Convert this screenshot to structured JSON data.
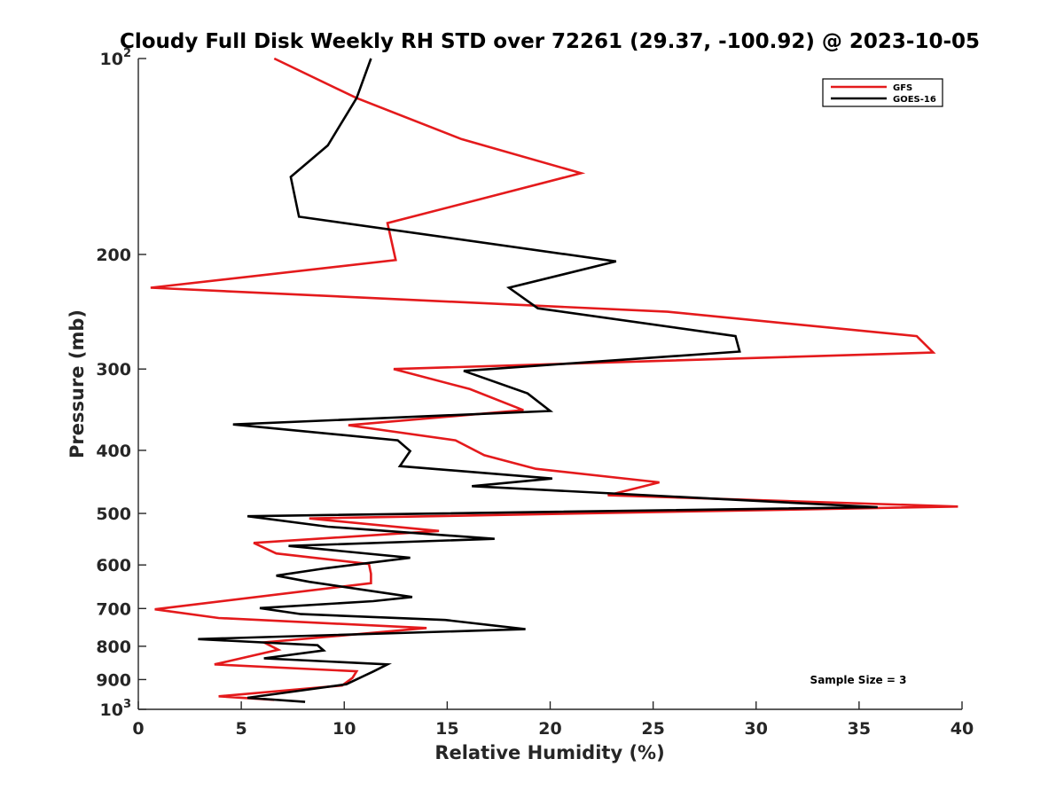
{
  "chart_data": {
    "type": "line",
    "title": "Cloudy Full Disk Weekly RH STD over 72261 (29.37, -100.92) @ 2023-10-05",
    "xlabel": "Relative Humidity (%)",
    "ylabel": "Pressure (mb)",
    "xlim": [
      0,
      40
    ],
    "ylim": [
      100,
      1000
    ],
    "yscale": "log",
    "y_reversed": true,
    "x_ticks": [
      0,
      5,
      10,
      15,
      20,
      25,
      30,
      35,
      40
    ],
    "y_ticks": [
      {
        "value": 100,
        "label": "10",
        "sup": "2"
      },
      {
        "value": 200,
        "label": "200"
      },
      {
        "value": 300,
        "label": "300"
      },
      {
        "value": 400,
        "label": "400"
      },
      {
        "value": 500,
        "label": "500"
      },
      {
        "value": 600,
        "label": "600"
      },
      {
        "value": 700,
        "label": "700"
      },
      {
        "value": 800,
        "label": "800"
      },
      {
        "value": 900,
        "label": "900"
      },
      {
        "value": 1000,
        "label": "10",
        "sup": "3"
      }
    ],
    "grid": false,
    "legend_position": "top-right",
    "series": [
      {
        "name": "GFS",
        "color": "#e41a1c",
        "points": [
          [
            6.6,
            100
          ],
          [
            10.6,
            115
          ],
          [
            15.7,
            133
          ],
          [
            21.5,
            150
          ],
          [
            12.1,
            179
          ],
          [
            12.5,
            204
          ],
          [
            0.6,
            225
          ],
          [
            25.7,
            245
          ],
          [
            37.8,
            267
          ],
          [
            38.6,
            283
          ],
          [
            12.4,
            300
          ],
          [
            16.1,
            322
          ],
          [
            18.7,
            347
          ],
          [
            10.2,
            366
          ],
          [
            15.4,
            386
          ],
          [
            16.8,
            407
          ],
          [
            19.3,
            427
          ],
          [
            25.3,
            448
          ],
          [
            22.8,
            469
          ],
          [
            39.8,
            488
          ],
          [
            8.3,
            509
          ],
          [
            14.6,
            532
          ],
          [
            5.6,
            555
          ],
          [
            6.7,
            576
          ],
          [
            11.2,
            598
          ],
          [
            11.3,
            619
          ],
          [
            11.3,
            640
          ],
          [
            0.8,
            702
          ],
          [
            3.9,
            724
          ],
          [
            14.0,
            750
          ],
          [
            6.1,
            789
          ],
          [
            6.8,
            810
          ],
          [
            3.7,
            853
          ],
          [
            10.6,
            874
          ],
          [
            10.4,
            895
          ],
          [
            9.9,
            919
          ],
          [
            3.9,
            955
          ],
          [
            6.6,
            967
          ]
        ]
      },
      {
        "name": "GOES-16",
        "color": "#000000",
        "points": [
          [
            11.3,
            100
          ],
          [
            10.6,
            115
          ],
          [
            9.2,
            136
          ],
          [
            7.4,
            152
          ],
          [
            7.8,
            175
          ],
          [
            23.2,
            205
          ],
          [
            18.0,
            225
          ],
          [
            19.4,
            242
          ],
          [
            29.0,
            267
          ],
          [
            29.2,
            282
          ],
          [
            15.8,
            302
          ],
          [
            18.9,
            327
          ],
          [
            20.0,
            348
          ],
          [
            4.6,
            365
          ],
          [
            12.6,
            386
          ],
          [
            13.2,
            401
          ],
          [
            12.7,
            423
          ],
          [
            20.1,
            442
          ],
          [
            16.2,
            454
          ],
          [
            35.9,
            489
          ],
          [
            5.3,
            505
          ],
          [
            9.2,
            524
          ],
          [
            17.3,
            547
          ],
          [
            7.3,
            561
          ],
          [
            13.2,
            585
          ],
          [
            9.1,
            607
          ],
          [
            6.7,
            623
          ],
          [
            8.3,
            637
          ],
          [
            13.3,
            672
          ],
          [
            11.4,
            682
          ],
          [
            5.9,
            699
          ],
          [
            7.9,
            714
          ],
          [
            14.9,
            729
          ],
          [
            18.8,
            753
          ],
          [
            2.9,
            780
          ],
          [
            8.7,
            797
          ],
          [
            9.0,
            812
          ],
          [
            6.1,
            835
          ],
          [
            12.1,
            853
          ],
          [
            11.4,
            875
          ],
          [
            10.1,
            915
          ],
          [
            5.3,
            960
          ],
          [
            8.1,
            974
          ]
        ]
      }
    ],
    "annotation": "Sample Size = 3"
  }
}
